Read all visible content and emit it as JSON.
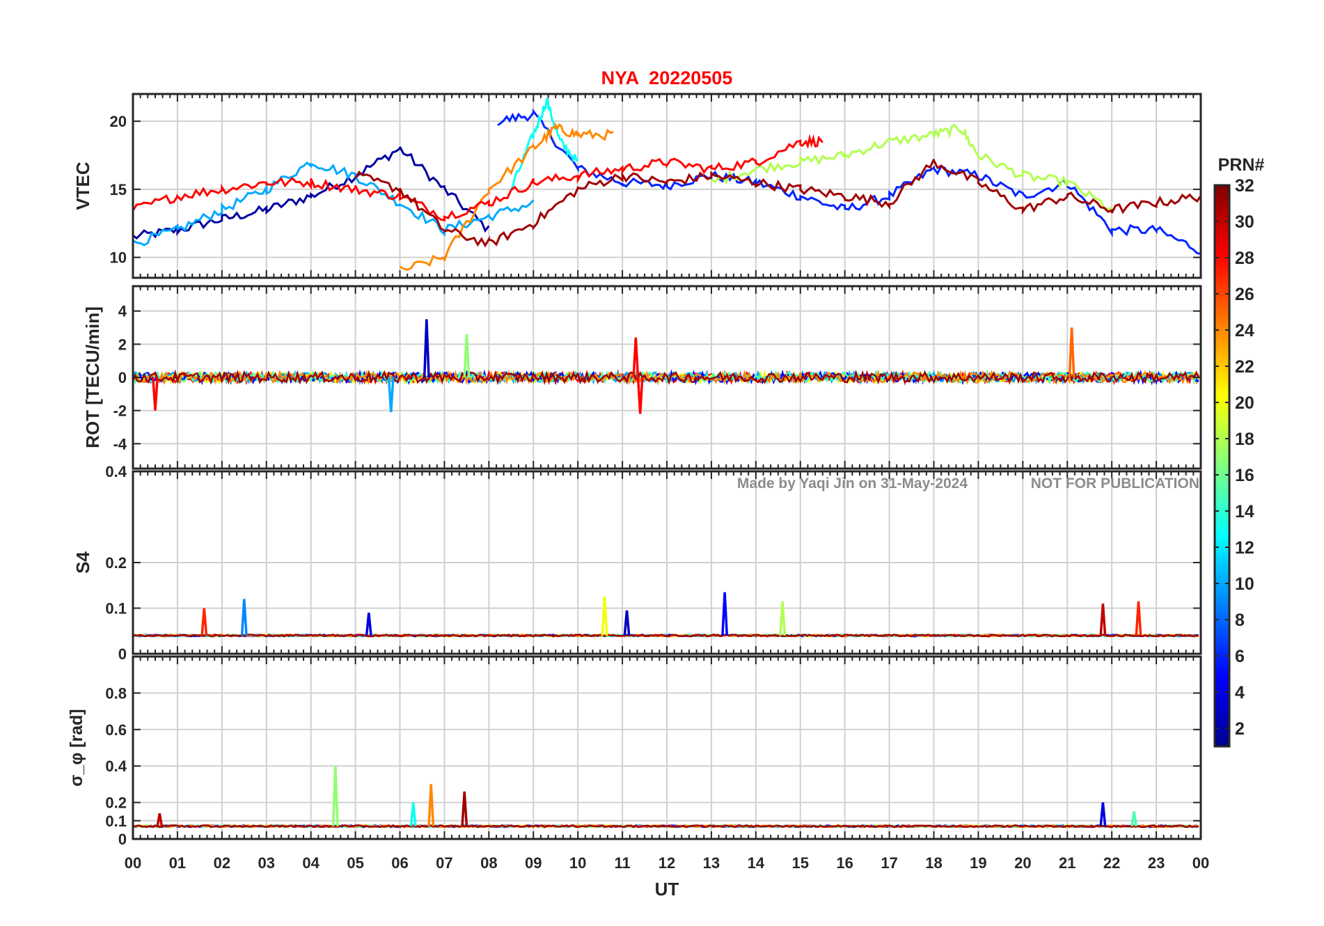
{
  "title": "NYA  20220505",
  "watermark": {
    "made_by": "Made by Yaqi Jin on 31-May-2024",
    "notice": "NOT FOR PUBLICATION"
  },
  "chart_data": [
    {
      "type": "line",
      "name": "VTEC panel",
      "ylabel": "VTEC",
      "ylim": [
        8.5,
        22
      ],
      "yticks": [
        10,
        15,
        20
      ],
      "ytick_labels": [
        "10",
        "15",
        "20"
      ],
      "xlim": [
        0,
        24
      ],
      "description_of_series": "one trace per GPS PRN (1-32), colored by PRN",
      "series_samples": [
        {
          "prn": 2,
          "x": [
            0,
            1,
            2,
            3,
            4,
            5,
            6,
            7,
            8
          ],
          "values": [
            11.5,
            12,
            12.8,
            13.5,
            14.5,
            16,
            18,
            15,
            12
          ]
        },
        {
          "prn": 6,
          "x": [
            8.2,
            9,
            10,
            11,
            12,
            13,
            14,
            15,
            16,
            17,
            18,
            19,
            20,
            21,
            22,
            23,
            24
          ],
          "values": [
            20,
            20.5,
            16.5,
            15.5,
            15.3,
            16,
            15.5,
            14.5,
            13.5,
            14.5,
            16.5,
            16,
            14.5,
            15.5,
            12,
            12,
            10.5
          ]
        },
        {
          "prn": 10,
          "x": [
            0,
            1,
            2,
            3,
            4,
            5,
            6,
            7,
            8,
            9
          ],
          "values": [
            11,
            12,
            13.5,
            15,
            17,
            16,
            14,
            12,
            13,
            14
          ]
        },
        {
          "prn": 13,
          "x": [
            8.5,
            9,
            9.3,
            9.6,
            10
          ],
          "values": [
            15,
            19,
            21.5,
            18.5,
            17
          ]
        },
        {
          "prn": 18,
          "x": [
            13,
            14,
            15,
            16,
            17,
            18,
            18.6,
            19,
            20,
            21,
            22
          ],
          "values": [
            15.5,
            16.5,
            17,
            17.5,
            18.5,
            19,
            19.5,
            17.5,
            16,
            15.5,
            13.5
          ]
        },
        {
          "prn": 24,
          "x": [
            6,
            7,
            8,
            9,
            9.5,
            10,
            10.8
          ],
          "values": [
            9,
            10,
            15,
            18,
            19.5,
            19,
            19
          ]
        },
        {
          "prn": 28,
          "x": [
            0,
            1,
            2,
            3,
            4,
            5,
            6,
            7,
            8,
            9,
            10,
            11,
            12,
            13,
            14,
            15,
            15.5
          ],
          "values": [
            13.5,
            14.5,
            15,
            15.5,
            15.5,
            15,
            14.5,
            13,
            14,
            15.5,
            16,
            16.5,
            17,
            16.5,
            17,
            18.5,
            18.5
          ]
        },
        {
          "prn": 31,
          "x": [
            5,
            6,
            7,
            8,
            9,
            10,
            11,
            12,
            13,
            14,
            15,
            16,
            17,
            18,
            19,
            20,
            21,
            22,
            23,
            24
          ],
          "values": [
            16,
            15,
            12,
            11,
            12.5,
            15,
            16,
            15.5,
            16,
            15.5,
            15,
            14.5,
            14,
            17,
            15.5,
            13.5,
            14.5,
            13.5,
            14,
            14.5
          ]
        }
      ]
    },
    {
      "type": "line",
      "name": "ROT panel",
      "ylabel": "ROT [TECU/min]",
      "ylim": [
        -5.5,
        5.5
      ],
      "yticks": [
        -4,
        -2,
        0,
        2,
        4
      ],
      "ytick_labels": [
        "-4",
        "-2",
        "0",
        "2",
        "4"
      ],
      "xlim": [
        0,
        24
      ],
      "spikes": [
        {
          "x": 6.6,
          "value": 3.5,
          "prn": 3
        },
        {
          "x": 7.5,
          "value": 2.6,
          "prn": 17
        },
        {
          "x": 11.3,
          "value": 2.4,
          "prn": 28
        },
        {
          "x": 11.4,
          "value": -2.2,
          "prn": 28
        },
        {
          "x": 21.1,
          "value": 3.0,
          "prn": 25
        },
        {
          "x": 0.5,
          "value": -2.0,
          "prn": 28
        },
        {
          "x": 5.8,
          "value": -2.1,
          "prn": 10
        }
      ],
      "noise_amplitude": 0.6
    },
    {
      "type": "line",
      "name": "S4 panel",
      "ylabel": "S4",
      "ylim": [
        0,
        0.4
      ],
      "yticks": [
        0,
        0.1,
        0.2,
        0.4
      ],
      "ytick_labels": [
        "0",
        "0.1",
        "0.2",
        "0.4"
      ],
      "xlim": [
        0,
        24
      ],
      "baseline": 0.04,
      "spikes": [
        {
          "x": 1.6,
          "value": 0.1,
          "prn": 27
        },
        {
          "x": 2.5,
          "value": 0.12,
          "prn": 9
        },
        {
          "x": 5.3,
          "value": 0.09,
          "prn": 4
        },
        {
          "x": 10.6,
          "value": 0.125,
          "prn": 20
        },
        {
          "x": 11.1,
          "value": 0.095,
          "prn": 3
        },
        {
          "x": 13.3,
          "value": 0.135,
          "prn": 5
        },
        {
          "x": 14.6,
          "value": 0.115,
          "prn": 18
        },
        {
          "x": 21.8,
          "value": 0.11,
          "prn": 30
        },
        {
          "x": 22.6,
          "value": 0.115,
          "prn": 27
        }
      ]
    },
    {
      "type": "line",
      "name": "Sigma phi panel",
      "ylabel": "σ_φ [rad]",
      "ylim": [
        0,
        1.0
      ],
      "yticks": [
        0,
        0.1,
        0.2,
        0.4,
        0.6,
        0.8
      ],
      "ytick_labels": [
        "0",
        "0.1",
        "0.2",
        "0.4",
        "0.6",
        "0.8"
      ],
      "xlim": [
        0,
        24
      ],
      "baseline": 0.07,
      "spikes": [
        {
          "x": 0.6,
          "value": 0.14,
          "prn": 30
        },
        {
          "x": 4.55,
          "value": 0.4,
          "prn": 17
        },
        {
          "x": 6.7,
          "value": 0.3,
          "prn": 24
        },
        {
          "x": 7.45,
          "value": 0.26,
          "prn": 31
        },
        {
          "x": 6.3,
          "value": 0.2,
          "prn": 13
        },
        {
          "x": 21.8,
          "value": 0.2,
          "prn": 4
        },
        {
          "x": 22.5,
          "value": 0.15,
          "prn": 15
        }
      ]
    }
  ],
  "xaxis": {
    "label": "UT",
    "xlim": [
      0,
      24
    ],
    "tick_labels": [
      "00",
      "01",
      "02",
      "03",
      "04",
      "05",
      "06",
      "07",
      "08",
      "09",
      "10",
      "11",
      "12",
      "13",
      "14",
      "15",
      "16",
      "17",
      "18",
      "19",
      "20",
      "21",
      "22",
      "23",
      "00"
    ]
  },
  "colorbar": {
    "title": "PRN#",
    "range": [
      1,
      32
    ],
    "colormap": "jet",
    "tick_values": [
      2,
      4,
      6,
      8,
      10,
      12,
      14,
      16,
      18,
      20,
      22,
      24,
      26,
      28,
      30,
      32
    ],
    "tick_labels": [
      "2",
      "4",
      "6",
      "8",
      "10",
      "12",
      "14",
      "16",
      "18",
      "20",
      "22",
      "24",
      "26",
      "28",
      "30",
      "32"
    ]
  },
  "colors": {
    "title": "#ff0000",
    "axis": "#262626",
    "grid": "#d0d0d0",
    "watermark": "#8c8c8c"
  }
}
